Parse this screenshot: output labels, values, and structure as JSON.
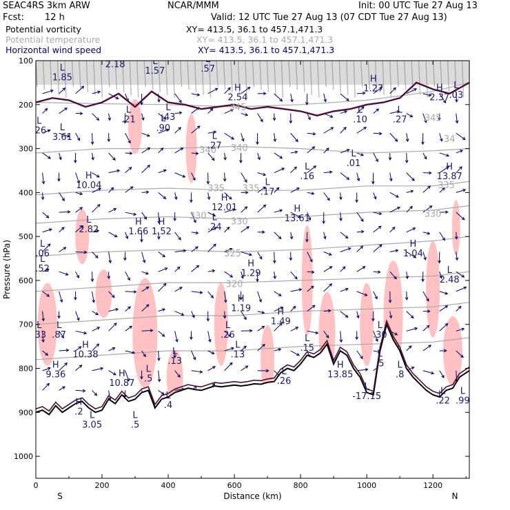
{
  "header": {
    "model": "SEAC4RS  3km ARW",
    "org": "NCAR/MMM",
    "init": "Init: 00 UTC Tue 27 Aug 13",
    "fcst_label": "Fcst:",
    "fcst_value": "12 h",
    "valid": "Valid: 12 UTC Tue 27 Aug 13 (07 CDT Tue 27 Aug 13)"
  },
  "fields": [
    {
      "name": "Potential vorticity",
      "xy": "XY= 413.5, 36.1 to 457.1,471.3",
      "color": "#000000"
    },
    {
      "name": "Potential temperature",
      "xy": "XY= 413.5, 36.1 to 457.1,471.3",
      "color": "#a8a8a8"
    },
    {
      "name": "Horizontal wind speed",
      "xy": "XY= 413.5, 36.1 to 457.1,471.3",
      "color": "#000066"
    }
  ],
  "chart_data": {
    "type": "cross-section",
    "xlabel": "Distance (km)",
    "ylabel": "Pressure (hPa)",
    "xlim": [
      0,
      1310
    ],
    "ylim": [
      1050,
      100
    ],
    "x_ticks": [
      0,
      200,
      400,
      600,
      800,
      1000,
      1200
    ],
    "x_tick_labels": [
      "0",
      "200",
      "400",
      "600",
      "800",
      "1000",
      "1200"
    ],
    "y_ticks": [
      100,
      200,
      300,
      400,
      500,
      600,
      700,
      800,
      900,
      1000
    ],
    "y_tick_labels": [
      "100",
      "200",
      "300",
      "400",
      "500",
      "600",
      "700",
      "800",
      "900",
      "1000"
    ],
    "end_labels": {
      "left": "S",
      "right": "N"
    },
    "colors": {
      "pv_contour": "#4a0f36",
      "theta_contour": "#a8a8a8",
      "wind": "#000066",
      "pv_shade": "#ffb6b6",
      "terrain": "#000000",
      "hl_text": "#1a1a66"
    },
    "terrain_profile": {
      "x": [
        0,
        20,
        40,
        60,
        80,
        100,
        120,
        140,
        160,
        180,
        200,
        220,
        240,
        260,
        280,
        300,
        320,
        340,
        360,
        380,
        400,
        420,
        440,
        460,
        480,
        500,
        520,
        540,
        560,
        580,
        600,
        620,
        640,
        660,
        680,
        700,
        720,
        740,
        760,
        780,
        800,
        820,
        840,
        860,
        880,
        900,
        920,
        940,
        960,
        980,
        1000,
        1020,
        1040,
        1060,
        1080,
        1100,
        1120,
        1140,
        1160,
        1180,
        1200,
        1220,
        1240,
        1260,
        1280,
        1300,
        1310
      ],
      "p": [
        900,
        895,
        905,
        885,
        900,
        890,
        880,
        875,
        890,
        900,
        895,
        870,
        880,
        860,
        875,
        870,
        855,
        850,
        890,
        870,
        865,
        855,
        850,
        845,
        848,
        850,
        845,
        840,
        842,
        840,
        838,
        840,
        838,
        835,
        836,
        832,
        830,
        810,
        800,
        805,
        790,
        770,
        775,
        765,
        745,
        790,
        760,
        770,
        800,
        820,
        855,
        860,
        760,
        700,
        735,
        760,
        800,
        820,
        835,
        850,
        860,
        865,
        850,
        845,
        820,
        810,
        805
      ]
    },
    "theta_contours": [
      {
        "level": "345",
        "x": [
          0,
          200,
          400,
          600,
          800,
          1000,
          1200,
          1310
        ],
        "p": [
          195,
          198,
          200,
          205,
          200,
          190,
          170,
          150
        ]
      },
      {
        "level": "340",
        "x": [
          0,
          200,
          400,
          600,
          800,
          1000,
          1200,
          1310
        ],
        "p": [
          310,
          300,
          300,
          295,
          300,
          310,
          305,
          300
        ]
      },
      {
        "level": "335",
        "x": [
          0,
          200,
          400,
          600,
          800,
          1000,
          1200,
          1310
        ],
        "p": [
          405,
          395,
          390,
          395,
          395,
          385,
          385,
          375
        ]
      },
      {
        "level": "330",
        "x": [
          0,
          200,
          400,
          600,
          800,
          1000,
          1200,
          1310
        ],
        "p": [
          470,
          460,
          455,
          460,
          455,
          445,
          440,
          430
        ]
      },
      {
        "level": "325",
        "x": [
          0,
          200,
          400,
          600,
          800,
          1000,
          1200,
          1310
        ],
        "p": [
          545,
          535,
          530,
          535,
          530,
          520,
          510,
          500
        ]
      },
      {
        "level": "320",
        "x": [
          0,
          200,
          400,
          600,
          800,
          1000,
          1200,
          1310
        ],
        "p": [
          625,
          615,
          605,
          605,
          600,
          595,
          590,
          580
        ]
      },
      {
        "level": "315",
        "x": [
          0,
          200,
          400,
          600,
          800,
          1000,
          1200,
          1310
        ],
        "p": [
          700,
          690,
          680,
          680,
          670,
          665,
          660,
          650
        ]
      },
      {
        "level": "310",
        "x": [
          0,
          200,
          400,
          600,
          800,
          1000,
          1200,
          1310
        ],
        "p": [
          780,
          770,
          760,
          760,
          750,
          745,
          740,
          730
        ]
      }
    ],
    "theta_labels": [
      {
        "text": "345",
        "x": 610,
        "p": 213
      },
      {
        "text": "345",
        "x": 1200,
        "p": 237
      },
      {
        "text": "340",
        "x": 520,
        "p": 310
      },
      {
        "text": "340",
        "x": 615,
        "p": 305
      },
      {
        "text": "34",
        "x": 1250,
        "p": 285
      },
      {
        "text": "335",
        "x": 545,
        "p": 397
      },
      {
        "text": "335",
        "x": 650,
        "p": 397
      },
      {
        "text": "335",
        "x": 1240,
        "p": 390
      },
      {
        "text": "330",
        "x": 490,
        "p": 460
      },
      {
        "text": "330",
        "x": 615,
        "p": 472
      },
      {
        "text": "330",
        "x": 1200,
        "p": 455
      },
      {
        "text": "325",
        "x": 595,
        "p": 545
      },
      {
        "text": "320",
        "x": 600,
        "p": 615
      }
    ],
    "hl_markers": [
      {
        "kind": "L",
        "value": "1.85",
        "x": 80,
        "p": 145
      },
      {
        "kind": "L",
        "value": "2.18",
        "x": 240,
        "p": 115
      },
      {
        "kind": "L",
        "value": "1.57",
        "x": 360,
        "p": 130
      },
      {
        "kind": "L",
        "value": ".57",
        "x": 520,
        "p": 125
      },
      {
        "kind": "H",
        "value": "2.54",
        "x": 610,
        "p": 190
      },
      {
        "kind": "L",
        "value": ".21",
        "x": 280,
        "p": 240
      },
      {
        "kind": "L",
        "value": ".43",
        "x": 400,
        "p": 235
      },
      {
        "kind": "L",
        "value": ".90",
        "x": 385,
        "p": 260
      },
      {
        "kind": "H",
        "value": "1.27",
        "x": 1020,
        "p": 170
      },
      {
        "kind": "H",
        "value": "2.37",
        "x": 1220,
        "p": 190
      },
      {
        "kind": "L",
        "value": ".03",
        "x": 1270,
        "p": 185
      },
      {
        "kind": "L",
        "value": ".10",
        "x": 980,
        "p": 240
      },
      {
        "kind": "L",
        "value": ".27",
        "x": 1100,
        "p": 240
      },
      {
        "kind": "L",
        "value": ".26",
        "x": 10,
        "p": 265
      },
      {
        "kind": "L",
        "value": "3.61",
        "x": 80,
        "p": 280
      },
      {
        "kind": "L",
        "value": ".27",
        "x": 540,
        "p": 300
      },
      {
        "kind": "L",
        "value": ".01",
        "x": 960,
        "p": 340
      },
      {
        "kind": "L",
        "value": ".16",
        "x": 820,
        "p": 370
      },
      {
        "kind": "H",
        "value": "13.87",
        "x": 1250,
        "p": 370
      },
      {
        "kind": "H",
        "value": "10.04",
        "x": 160,
        "p": 390
      },
      {
        "kind": "L",
        "value": ".17",
        "x": 700,
        "p": 405
      },
      {
        "kind": "H",
        "value": "12.01",
        "x": 570,
        "p": 440
      },
      {
        "kind": "H",
        "value": "13.61",
        "x": 790,
        "p": 465
      },
      {
        "kind": "L",
        "value": "2.82",
        "x": 160,
        "p": 490
      },
      {
        "kind": "H",
        "value": "1.66",
        "x": 310,
        "p": 495
      },
      {
        "kind": "H",
        "value": "1.52",
        "x": 380,
        "p": 495
      },
      {
        "kind": "L",
        "value": ".24",
        "x": 540,
        "p": 485
      },
      {
        "kind": "L",
        "value": ".06",
        "x": 20,
        "p": 545
      },
      {
        "kind": "H",
        "value": "1.04",
        "x": 1140,
        "p": 545
      },
      {
        "kind": "L",
        "value": ".52",
        "x": 20,
        "p": 580
      },
      {
        "kind": "H",
        "value": "1.29",
        "x": 650,
        "p": 590
      },
      {
        "kind": "L",
        "value": "2.48",
        "x": 1250,
        "p": 605
      },
      {
        "kind": "H",
        "value": "1.19",
        "x": 620,
        "p": 670
      },
      {
        "kind": "H",
        "value": "1.49",
        "x": 740,
        "p": 700
      },
      {
        "kind": "L",
        "value": ".33",
        "x": 10,
        "p": 730
      },
      {
        "kind": "L",
        "value": ".87",
        "x": 70,
        "p": 730
      },
      {
        "kind": "L",
        "value": ".26",
        "x": 580,
        "p": 730
      },
      {
        "kind": "L",
        "value": ".15",
        "x": 820,
        "p": 760
      },
      {
        "kind": "L",
        "value": ".13",
        "x": 610,
        "p": 775
      },
      {
        "kind": "H",
        "value": "10.38",
        "x": 150,
        "p": 775
      },
      {
        "kind": "L",
        "value": ".13",
        "x": 420,
        "p": 790
      },
      {
        "kind": "L",
        "value": ".30",
        "x": 1040,
        "p": 730
      },
      {
        "kind": "L",
        "value": ".5",
        "x": 1040,
        "p": 795
      },
      {
        "kind": "H",
        "value": "9.36",
        "x": 60,
        "p": 820
      },
      {
        "kind": "H",
        "value": "13.85",
        "x": 920,
        "p": 820
      },
      {
        "kind": "L",
        "value": ".26",
        "x": 750,
        "p": 835
      },
      {
        "kind": "L",
        "value": ".8",
        "x": 1100,
        "p": 820
      },
      {
        "kind": "H",
        "value": "10.87",
        "x": 260,
        "p": 840
      },
      {
        "kind": "L",
        "value": ".5",
        "x": 340,
        "p": 830
      },
      {
        "kind": "L",
        "value": "-17.15",
        "x": 1000,
        "p": 870
      },
      {
        "kind": "L",
        "value": ".4",
        "x": 400,
        "p": 890
      },
      {
        "kind": "H",
        "value": ".2",
        "x": 130,
        "p": 905
      },
      {
        "kind": "L",
        "value": "3.05",
        "x": 170,
        "p": 935
      },
      {
        "kind": "L",
        "value": ".5",
        "x": 300,
        "p": 935
      },
      {
        "kind": "L",
        "value": ".22",
        "x": 1230,
        "p": 880
      },
      {
        "kind": "L",
        "value": ".99",
        "x": 1290,
        "p": 880
      }
    ]
  }
}
